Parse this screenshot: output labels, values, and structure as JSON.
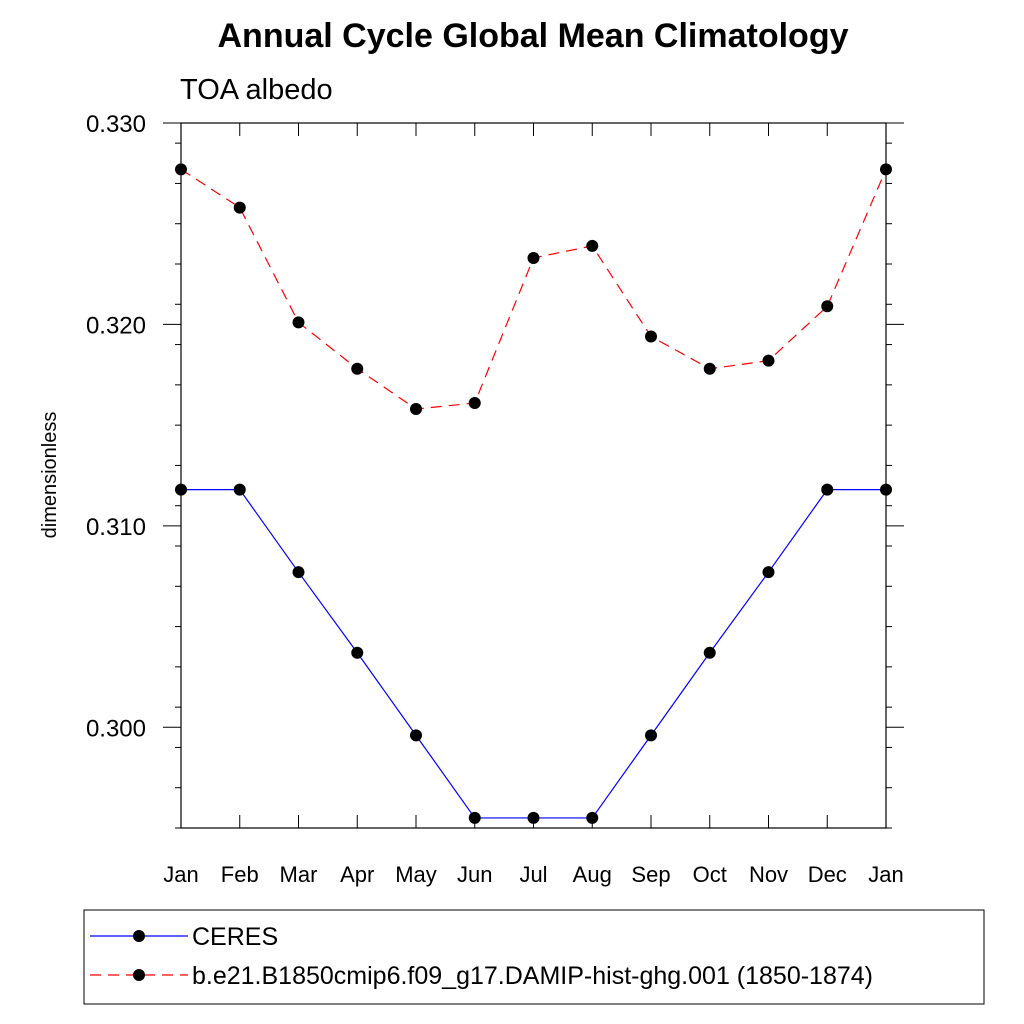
{
  "chart_data": {
    "type": "line",
    "title": "Annual Cycle Global Mean Climatology",
    "subtitle": "TOA albedo",
    "xlabel": "",
    "ylabel": "dimensionless",
    "categories": [
      "Jan",
      "Feb",
      "Mar",
      "Apr",
      "May",
      "Jun",
      "Jul",
      "Aug",
      "Sep",
      "Oct",
      "Nov",
      "Dec",
      "Jan"
    ],
    "ylim": [
      0.295,
      0.33
    ],
    "yticks": [
      0.3,
      0.31,
      0.32,
      0.33
    ],
    "ytick_labels": [
      "0.300",
      "0.310",
      "0.320",
      "0.330"
    ],
    "series": [
      {
        "name": "CERES",
        "color": "#0000ff",
        "dash": "solid",
        "values": [
          0.3118,
          0.3118,
          0.3077,
          0.3037,
          0.2996,
          0.2955,
          0.2955,
          0.2955,
          0.2996,
          0.3037,
          0.3077,
          0.3118,
          0.3118
        ]
      },
      {
        "name": "b.e21.B1850cmip6.f09_g17.DAMIP-hist-ghg.001 (1850-1874)",
        "color": "#ff0000",
        "dash": "dashed",
        "values": [
          0.3277,
          0.3258,
          0.3201,
          0.3178,
          0.3158,
          0.3161,
          0.3233,
          0.3239,
          0.3194,
          0.3178,
          0.3182,
          0.3209,
          0.3277
        ]
      }
    ],
    "legend_position": "bottom-left"
  }
}
